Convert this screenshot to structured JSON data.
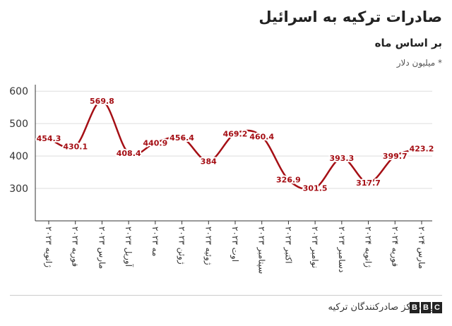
{
  "header": {
    "title": "صادرات ترکیه به اسرائیل",
    "subtitle": "بر اساس ماه",
    "unit_note": "* میلیون دلار"
  },
  "footer": {
    "source": "منبع: مرکز صادرکنندگان ترکیه",
    "logo_letters": [
      "B",
      "B",
      "C"
    ]
  },
  "colors": {
    "line": "#a50f15",
    "label": "#a50f15",
    "grid": "#dddddd",
    "axis": "#333333"
  },
  "chart_data": {
    "type": "line",
    "title": "صادرات ترکیه به اسرائیل",
    "subtitle": "بر اساس ماه",
    "xlabel": "",
    "ylabel": "* میلیون دلار",
    "ylim": [
      200,
      620
    ],
    "yticks": [
      300,
      400,
      500,
      600
    ],
    "grid": true,
    "categories": [
      "ژانویه ۲۰۲۳",
      "فوریه ۲۰۲۳",
      "مارس ۲۰۲۳",
      "آوریل ۲۰۲۳",
      "مه ۲۰۲۳",
      "ژوئن ۲۰۲۳",
      "ژوئیه ۲۰۲۳",
      "اوت ۲۰۲۳",
      "سپتامبر ۲۰۲۳",
      "اکتبر ۲۰۲۳",
      "نوامبر ۲۰۲۳",
      "دسامبر ۲۰۲۳",
      "ژانویه ۲۰۲۴",
      "فوریه ۲۰۲۴",
      "مارس ۲۰۲۴"
    ],
    "series": [
      {
        "values": [
          454.3,
          430.1,
          569.8,
          408.4,
          440.9,
          456.4,
          384,
          469.2,
          460.4,
          326.9,
          301.5,
          393.3,
          317.7,
          399.7,
          423.2
        ],
        "labels": [
          "454.3",
          "430.1",
          "569.8",
          "408.4",
          "440.9",
          "456.4",
          "384",
          "469.2",
          "460.4",
          "326.9",
          "301.5",
          "393.3",
          "317.7",
          "399.7",
          "423.2"
        ]
      }
    ]
  }
}
